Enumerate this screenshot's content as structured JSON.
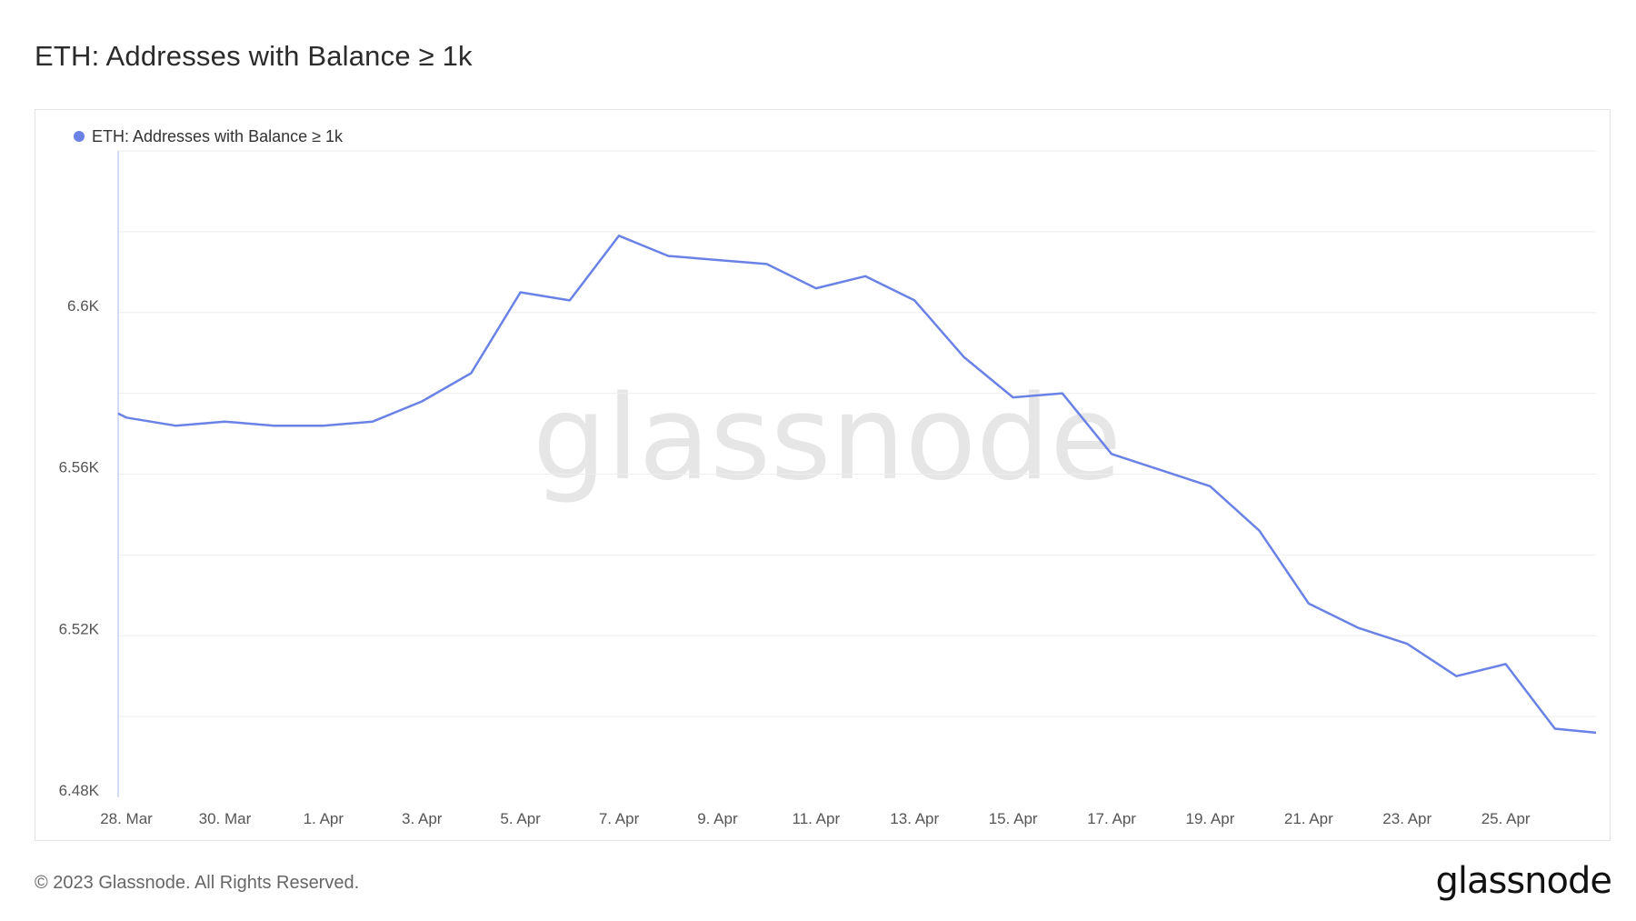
{
  "title": "ETH: Addresses with Balance ≥ 1k",
  "watermark": "glassnode",
  "footer": {
    "copyright": "© 2023 Glassnode. All Rights Reserved.",
    "logo": "glassnode"
  },
  "colors": {
    "series": "#6a82e6",
    "grid": "#eeeeee",
    "axis": "#a9b8f0",
    "watermark": "#e6e6e6"
  },
  "chart_data": {
    "type": "line",
    "title": "ETH: Addresses with Balance ≥ 1k",
    "legend": {
      "position": "top-left",
      "entries": [
        "ETH: Addresses with Balance ≥ 1k"
      ]
    },
    "grid": true,
    "ylim": [
      6480,
      6640
    ],
    "y_ticks": [
      6480,
      6520,
      6560,
      6600
    ],
    "y_tick_labels": [
      "6.48K",
      "6.52K",
      "6.56K",
      "6.6K"
    ],
    "x_ticks": [
      "2023-03-28",
      "2023-03-30",
      "2023-04-01",
      "2023-04-03",
      "2023-04-05",
      "2023-04-07",
      "2023-04-09",
      "2023-04-11",
      "2023-04-13",
      "2023-04-15",
      "2023-04-17",
      "2023-04-19",
      "2023-04-21",
      "2023-04-23",
      "2023-04-25"
    ],
    "x_tick_labels": [
      "28. Mar",
      "30. Mar",
      "1. Apr",
      "3. Apr",
      "5. Apr",
      "7. Apr",
      "9. Apr",
      "11. Apr",
      "13. Apr",
      "15. Apr",
      "17. Apr",
      "19. Apr",
      "21. Apr",
      "23. Apr",
      "25. Apr"
    ],
    "xlim": [
      "2023-03-27T20:00",
      "2023-04-26T20:00"
    ],
    "series": [
      {
        "name": "ETH: Addresses with Balance ≥ 1k",
        "x": [
          "2023-03-27T20:00",
          "2023-03-28",
          "2023-03-29",
          "2023-03-30",
          "2023-03-31",
          "2023-04-01",
          "2023-04-02",
          "2023-04-03",
          "2023-04-04",
          "2023-04-05",
          "2023-04-06",
          "2023-04-07",
          "2023-04-08",
          "2023-04-09",
          "2023-04-10",
          "2023-04-11",
          "2023-04-12",
          "2023-04-13",
          "2023-04-14",
          "2023-04-15",
          "2023-04-16",
          "2023-04-17",
          "2023-04-18",
          "2023-04-19",
          "2023-04-20",
          "2023-04-21",
          "2023-04-22",
          "2023-04-23",
          "2023-04-24",
          "2023-04-25",
          "2023-04-26",
          "2023-04-26T20:00"
        ],
        "y": [
          6575,
          6574,
          6572,
          6573,
          6572,
          6572,
          6573,
          6578,
          6585,
          6605,
          6603,
          6619,
          6614,
          6613,
          6612,
          6606,
          6609,
          6603,
          6589,
          6579,
          6580,
          6565,
          6561,
          6557,
          6546,
          6528,
          6522,
          6518,
          6510,
          6513,
          6497,
          6496
        ]
      }
    ]
  }
}
